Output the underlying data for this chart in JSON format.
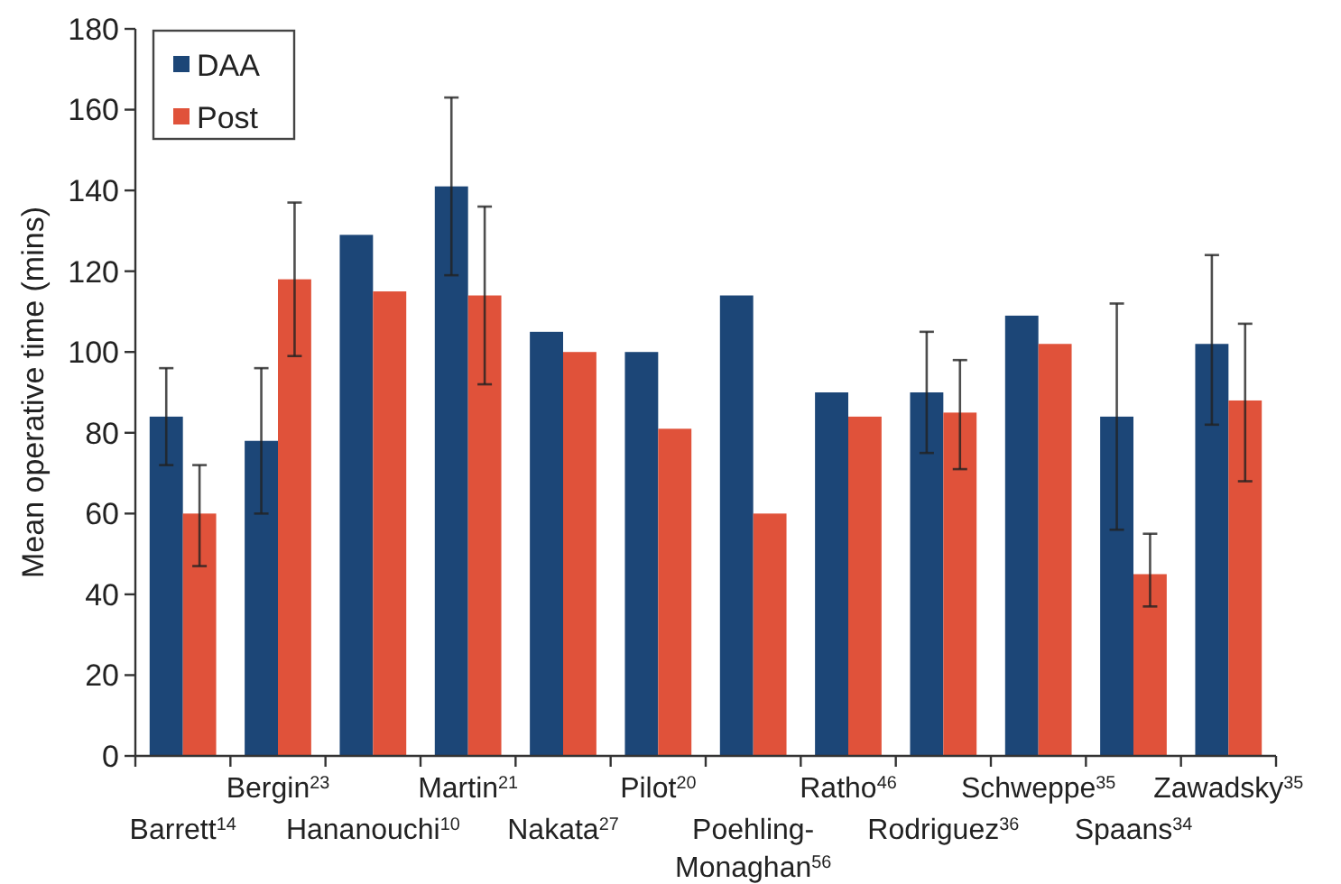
{
  "chart_data": {
    "type": "bar",
    "ylabel": "Mean operative time (mins)",
    "categories": [
      "Barrett$^{14}$",
      "Bergin$^{23}$",
      "Hananouchi$^{10}$",
      "Martin$^{21}$",
      "Nakata$^{27}$",
      "Pilot$^{20}$",
      "Poehling-Monaghan$^{56}$",
      "Ratho$^{46}$",
      "Rodriguez$^{36}$",
      "Schweppe$^{35}$",
      "Spaans$^{34}$",
      "Zawadsky$^{35}$"
    ],
    "series": [
      {
        "name": "DAA",
        "color": "#1c4677",
        "values": [
          84,
          78,
          129,
          141,
          105,
          100,
          114,
          90,
          90,
          109,
          84,
          102
        ],
        "errors": [
          [
            72,
            96
          ],
          [
            60,
            96
          ],
          null,
          [
            119,
            163
          ],
          null,
          null,
          null,
          null,
          [
            75,
            105
          ],
          null,
          [
            56,
            112
          ],
          [
            82,
            124
          ]
        ]
      },
      {
        "name": "Post",
        "color": "#e0523a",
        "values": [
          60,
          118,
          115,
          114,
          100,
          81,
          60,
          84,
          85,
          102,
          45,
          88
        ],
        "errors": [
          [
            47,
            72
          ],
          [
            99,
            137
          ],
          null,
          [
            92,
            136
          ],
          null,
          null,
          null,
          null,
          [
            71,
            98
          ],
          null,
          [
            37,
            55
          ],
          [
            68,
            107
          ]
        ]
      }
    ],
    "ylim": [
      0,
      180
    ],
    "yticks": [
      0,
      20,
      40,
      60,
      80,
      100,
      120,
      140,
      160,
      180
    ],
    "grid": false,
    "legend": "top left"
  }
}
